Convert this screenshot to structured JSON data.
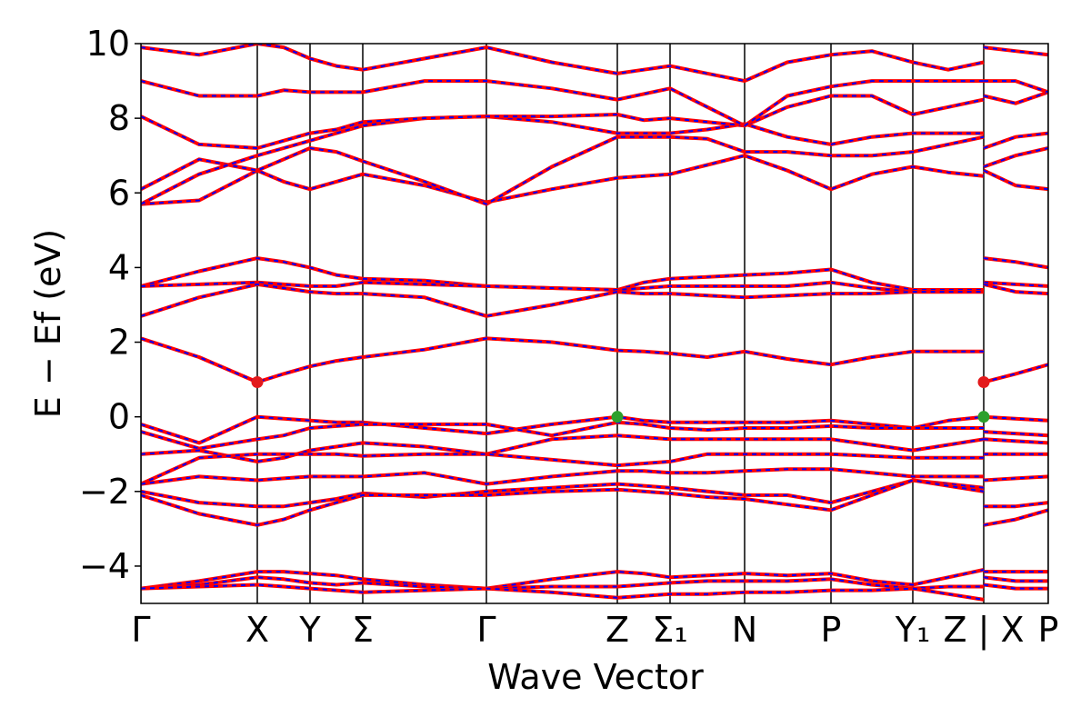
{
  "chart_data": {
    "type": "line",
    "xlabel": "Wave Vector",
    "ylabel": "E − Ef (eV)",
    "color": "#ff0000",
    "dash_color": "#0000ff",
    "xlim": [
      0,
      9.98
    ],
    "ylim": [
      -5,
      10
    ],
    "xticks": [
      {
        "value": 0,
        "label": "Γ"
      },
      {
        "value": 1.28,
        "label": "X"
      },
      {
        "value": 1.86,
        "label": "Y"
      },
      {
        "value": 2.44,
        "label": "Σ"
      },
      {
        "value": 3.8,
        "label": "Γ"
      },
      {
        "value": 5.24,
        "label": "Z"
      },
      {
        "value": 5.82,
        "label": "Σ₁"
      },
      {
        "value": 6.64,
        "label": "N"
      },
      {
        "value": 7.59,
        "label": "P"
      },
      {
        "value": 8.49,
        "label": "Y₁"
      },
      {
        "value": 9.27,
        "label": "Z | X"
      },
      {
        "value": 9.98,
        "label": "P"
      }
    ],
    "yticks": [
      {
        "value": -4,
        "label": "−4"
      },
      {
        "value": -2,
        "label": "−2"
      },
      0,
      2,
      4,
      6,
      8,
      10
    ],
    "x": [
      0,
      0.64,
      1.28,
      1.57,
      1.86,
      2.15,
      2.44,
      3.12,
      3.8,
      4.52,
      5.24,
      5.53,
      5.82,
      6.23,
      6.64,
      7.11,
      7.59,
      8.04,
      8.49,
      8.88,
      9.27,
      9.27,
      9.27,
      9.62,
      9.98
    ],
    "series": [
      {
        "values": [
          2.1,
          1.6,
          0.93,
          1.15,
          1.35,
          1.5,
          1.6,
          1.8,
          2.1,
          2.0,
          1.78,
          1.75,
          1.7,
          1.6,
          1.75,
          1.55,
          1.4,
          1.6,
          1.75,
          1.75,
          1.75,
          null,
          0.93,
          1.15,
          1.4
        ]
      },
      {
        "values": [
          3.5,
          3.9,
          4.25,
          4.15,
          4.0,
          3.8,
          3.7,
          3.65,
          3.5,
          3.45,
          3.4,
          3.6,
          3.7,
          3.75,
          3.8,
          3.85,
          3.95,
          3.6,
          3.4,
          3.4,
          3.4,
          null,
          4.25,
          4.15,
          4.0
        ]
      },
      {
        "values": [
          3.5,
          3.55,
          3.6,
          3.55,
          3.5,
          3.5,
          3.6,
          3.55,
          3.5,
          3.45,
          3.4,
          3.45,
          3.5,
          3.5,
          3.5,
          3.5,
          3.6,
          3.45,
          3.35,
          3.35,
          3.35,
          null,
          3.6,
          3.55,
          3.5
        ]
      },
      {
        "values": [
          2.7,
          3.2,
          3.55,
          3.45,
          3.35,
          3.3,
          3.3,
          3.2,
          2.7,
          3.0,
          3.35,
          3.3,
          3.3,
          3.25,
          3.2,
          3.25,
          3.3,
          3.3,
          3.35,
          3.35,
          3.35,
          null,
          3.55,
          3.35,
          3.3
        ]
      },
      {
        "values": [
          5.7,
          5.8,
          6.6,
          6.3,
          6.1,
          6.3,
          6.5,
          6.2,
          5.75,
          6.1,
          6.4,
          6.45,
          6.5,
          6.75,
          7.0,
          6.6,
          6.1,
          6.5,
          6.7,
          6.55,
          6.45,
          null,
          6.6,
          6.2,
          6.1
        ]
      },
      {
        "values": [
          6.1,
          6.9,
          6.6,
          6.9,
          7.2,
          7.1,
          6.85,
          6.3,
          5.7,
          6.7,
          7.5,
          7.5,
          7.5,
          7.45,
          7.1,
          7.1,
          7.0,
          7.0,
          7.1,
          7.3,
          7.5,
          null,
          6.7,
          7.0,
          7.2
        ]
      },
      {
        "values": [
          5.7,
          6.5,
          7.0,
          7.2,
          7.4,
          7.6,
          7.8,
          8.0,
          8.05,
          7.9,
          7.6,
          7.6,
          7.6,
          7.7,
          7.85,
          7.5,
          7.3,
          7.5,
          7.6,
          7.6,
          7.6,
          null,
          7.2,
          7.5,
          7.6
        ]
      },
      {
        "values": [
          8.05,
          7.3,
          7.2,
          7.4,
          7.6,
          7.7,
          7.9,
          8.0,
          8.05,
          8.05,
          8.1,
          7.95,
          8.0,
          7.9,
          7.8,
          8.3,
          8.6,
          8.6,
          8.1,
          8.3,
          8.5,
          null,
          8.6,
          8.4,
          8.7
        ]
      },
      {
        "values": [
          9.0,
          8.6,
          8.6,
          8.75,
          8.7,
          8.7,
          8.7,
          9.0,
          9.0,
          8.8,
          8.5,
          8.65,
          8.8,
          8.3,
          7.8,
          8.6,
          8.85,
          9.0,
          9.0,
          9.0,
          9.0,
          null,
          9.0,
          9.0,
          8.7
        ]
      },
      {
        "values": [
          9.9,
          9.7,
          10.0,
          9.9,
          9.6,
          9.4,
          9.3,
          9.6,
          9.9,
          9.5,
          9.2,
          9.3,
          9.4,
          9.2,
          9.0,
          9.5,
          9.7,
          9.8,
          9.5,
          9.3,
          9.5,
          null,
          9.9,
          9.8,
          9.7
        ]
      },
      {
        "values": [
          -0.2,
          -0.7,
          0.0,
          -0.05,
          -0.1,
          -0.15,
          -0.15,
          -0.3,
          -0.45,
          -0.2,
          0.0,
          -0.1,
          -0.15,
          -0.15,
          -0.15,
          -0.15,
          -0.1,
          -0.2,
          -0.3,
          -0.1,
          0.0,
          null,
          0.0,
          -0.05,
          -0.1
        ]
      },
      {
        "values": [
          -0.4,
          -0.85,
          -0.6,
          -0.5,
          -0.3,
          -0.25,
          -0.2,
          -0.2,
          -0.2,
          -0.5,
          -0.15,
          -0.2,
          -0.3,
          -0.35,
          -0.3,
          -0.3,
          -0.25,
          -0.3,
          -0.3,
          -0.3,
          -0.3,
          null,
          -0.4,
          -0.45,
          -0.5
        ]
      },
      {
        "values": [
          -1.0,
          -0.9,
          -1.2,
          -1.1,
          -0.9,
          -0.8,
          -0.7,
          -0.8,
          -1.0,
          -0.6,
          -0.5,
          -0.55,
          -0.6,
          -0.6,
          -0.6,
          -0.6,
          -0.6,
          -0.75,
          -0.9,
          -0.75,
          -0.6,
          null,
          -0.6,
          -0.65,
          -0.7
        ]
      },
      {
        "values": [
          -1.8,
          -1.1,
          -1.0,
          -1.0,
          -1.0,
          -1.0,
          -1.05,
          -1.0,
          -1.0,
          -1.15,
          -1.3,
          -1.25,
          -1.2,
          -1.0,
          -1.0,
          -1.0,
          -1.0,
          -1.05,
          -1.1,
          -1.1,
          -1.1,
          null,
          -1.0,
          -1.0,
          -1.0
        ]
      },
      {
        "values": [
          -1.8,
          -1.6,
          -1.7,
          -1.65,
          -1.6,
          -1.6,
          -1.6,
          -1.5,
          -1.8,
          -1.6,
          -1.45,
          -1.45,
          -1.5,
          -1.5,
          -1.45,
          -1.4,
          -1.4,
          -1.5,
          -1.6,
          -1.6,
          -1.6,
          null,
          -1.7,
          -1.65,
          -1.6
        ]
      },
      {
        "values": [
          -2.0,
          -2.3,
          -2.4,
          -2.4,
          -2.3,
          -2.2,
          -2.05,
          -2.15,
          -2.0,
          -1.9,
          -1.8,
          -1.85,
          -1.9,
          -2.0,
          -2.1,
          -2.1,
          -2.3,
          -2.0,
          -1.7,
          -1.8,
          -1.9,
          null,
          -2.4,
          -2.4,
          -2.3
        ]
      },
      {
        "values": [
          -2.1,
          -2.6,
          -2.9,
          -2.75,
          -2.5,
          -2.3,
          -2.1,
          -2.1,
          -2.1,
          -2.0,
          -1.95,
          -2.0,
          -2.05,
          -2.15,
          -2.2,
          -2.35,
          -2.5,
          -2.1,
          -1.7,
          -1.85,
          -2.0,
          null,
          -2.9,
          -2.75,
          -2.5
        ]
      },
      {
        "values": [
          -4.6,
          -4.4,
          -4.15,
          -4.15,
          -4.2,
          -4.25,
          -4.35,
          -4.5,
          -4.6,
          -4.35,
          -4.15,
          -4.2,
          -4.3,
          -4.25,
          -4.2,
          -4.25,
          -4.2,
          -4.4,
          -4.5,
          -4.3,
          -4.1,
          null,
          -4.15,
          -4.15,
          -4.15
        ]
      },
      {
        "values": [
          -4.6,
          -4.5,
          -4.3,
          -4.35,
          -4.45,
          -4.5,
          -4.45,
          -4.55,
          -4.6,
          -4.55,
          -4.55,
          -4.5,
          -4.45,
          -4.4,
          -4.4,
          -4.4,
          -4.35,
          -4.5,
          -4.6,
          -4.55,
          -4.55,
          null,
          -4.3,
          -4.4,
          -4.4
        ]
      },
      {
        "values": [
          -4.6,
          -4.55,
          -4.5,
          -4.55,
          -4.6,
          -4.65,
          -4.7,
          -4.65,
          -4.6,
          -4.7,
          -4.85,
          -4.8,
          -4.75,
          -4.75,
          -4.7,
          -4.7,
          -4.65,
          -4.65,
          -4.6,
          -4.75,
          -4.9,
          null,
          -4.5,
          -4.6,
          -4.6
        ]
      }
    ],
    "points": [
      {
        "x": 1.28,
        "y": 0.93,
        "color": "#e31a1c"
      },
      {
        "x": 9.27,
        "y": 0.93,
        "color": "#e31a1c"
      },
      {
        "x": 5.24,
        "y": 0.0,
        "color": "#2ca02c"
      },
      {
        "x": 9.27,
        "y": 0.0,
        "color": "#2ca02c"
      }
    ]
  }
}
